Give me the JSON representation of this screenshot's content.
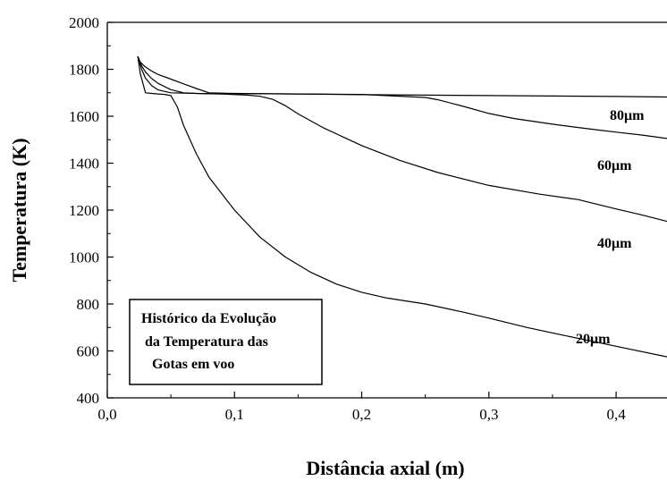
{
  "chart_data": {
    "type": "line",
    "xlabel": "Distância axial  (m)",
    "ylabel": "Temperatura  (K)",
    "xlim": [
      0.0,
      0.44
    ],
    "ylim": [
      400,
      2000
    ],
    "xticks": [
      0.0,
      0.1,
      0.2,
      0.3,
      0.4
    ],
    "xtick_labels": [
      "0,0",
      "0,1",
      "0,2",
      "0,3",
      "0,4"
    ],
    "yticks": [
      400,
      600,
      800,
      1000,
      1200,
      1400,
      1600,
      1800,
      2000
    ],
    "ytick_labels": [
      "400",
      "600",
      "800",
      "1000",
      "1200",
      "1400",
      "1600",
      "1800",
      "2000"
    ],
    "grid": false,
    "annotation": {
      "lines": [
        "Histórico da Evolução",
        "da Temperatura das",
        "Gotas em voo"
      ]
    },
    "series": [
      {
        "name": "80μm",
        "x": [
          0.024,
          0.026,
          0.03,
          0.035,
          0.04,
          0.05,
          0.06,
          0.07,
          0.08,
          0.1,
          0.15,
          0.2,
          0.25,
          0.3,
          0.35,
          0.4,
          0.44
        ],
        "y": [
          1855,
          1830,
          1810,
          1792,
          1778,
          1758,
          1738,
          1718,
          1700,
          1697,
          1695,
          1692,
          1690,
          1688,
          1686,
          1684,
          1682
        ]
      },
      {
        "name": "60μm",
        "x": [
          0.024,
          0.027,
          0.03,
          0.035,
          0.04,
          0.05,
          0.06,
          0.07,
          0.08,
          0.1,
          0.12,
          0.15,
          0.2,
          0.25,
          0.26,
          0.28,
          0.3,
          0.32,
          0.35,
          0.38,
          0.4,
          0.42,
          0.44
        ],
        "y": [
          1855,
          1815,
          1788,
          1760,
          1740,
          1713,
          1700,
          1697,
          1696,
          1696,
          1696,
          1695,
          1693,
          1680,
          1670,
          1642,
          1612,
          1590,
          1566,
          1545,
          1532,
          1520,
          1505
        ]
      },
      {
        "name": "40μm",
        "x": [
          0.024,
          0.027,
          0.03,
          0.035,
          0.04,
          0.05,
          0.07,
          0.09,
          0.11,
          0.12,
          0.13,
          0.14,
          0.15,
          0.17,
          0.2,
          0.23,
          0.26,
          0.3,
          0.34,
          0.37,
          0.4,
          0.42,
          0.44
        ],
        "y": [
          1855,
          1800,
          1762,
          1730,
          1712,
          1700,
          1697,
          1695,
          1690,
          1685,
          1672,
          1645,
          1610,
          1550,
          1475,
          1412,
          1360,
          1305,
          1268,
          1245,
          1205,
          1180,
          1152
        ]
      },
      {
        "name": "20μm",
        "x": [
          0.024,
          0.026,
          0.03,
          0.035,
          0.04,
          0.045,
          0.05,
          0.055,
          0.06,
          0.07,
          0.08,
          0.1,
          0.12,
          0.14,
          0.16,
          0.18,
          0.2,
          0.22,
          0.25,
          0.28,
          0.3,
          0.33,
          0.36,
          0.4,
          0.44
        ],
        "y": [
          1855,
          1780,
          1700,
          1697,
          1695,
          1693,
          1688,
          1640,
          1560,
          1440,
          1340,
          1200,
          1085,
          1000,
          935,
          885,
          850,
          825,
          800,
          765,
          740,
          700,
          665,
          620,
          575
        ]
      }
    ]
  }
}
